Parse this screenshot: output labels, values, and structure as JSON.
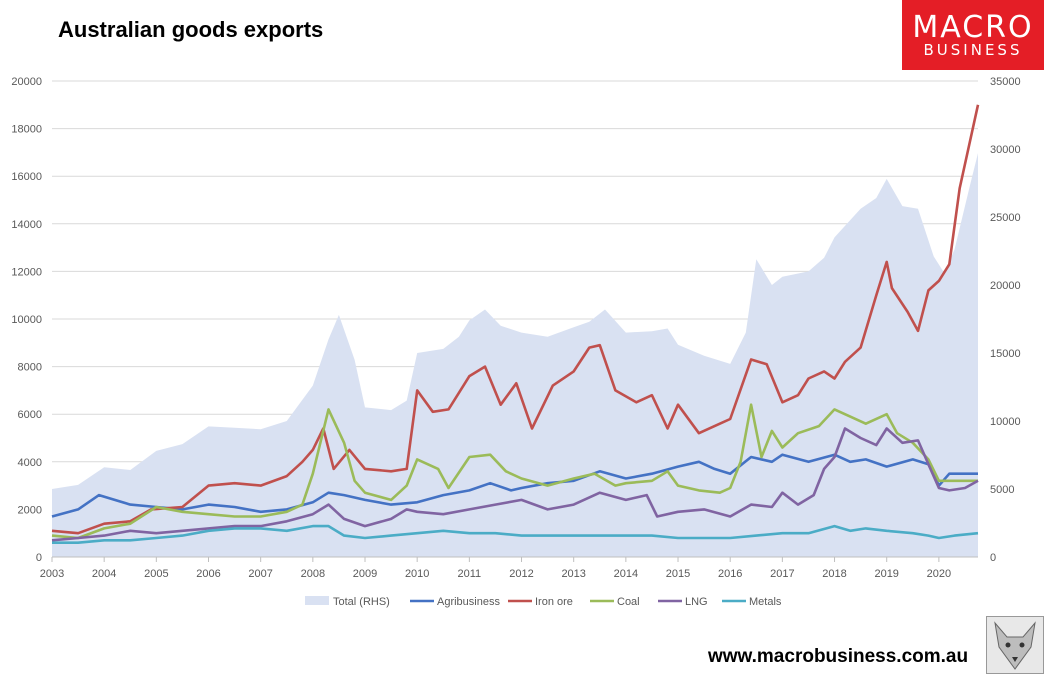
{
  "chart_data": {
    "type": "line",
    "title": "Australian goods exports",
    "x_range": [
      2003,
      2020.75
    ],
    "x_ticks": [
      "2003",
      "2004",
      "2005",
      "2006",
      "2007",
      "2008",
      "2009",
      "2010",
      "2011",
      "2012",
      "2013",
      "2014",
      "2015",
      "2016",
      "2017",
      "2018",
      "2019",
      "2020"
    ],
    "y_left_range": [
      0,
      20000
    ],
    "y_left_ticks": [
      "0",
      "2000",
      "4000",
      "6000",
      "8000",
      "10000",
      "12000",
      "14000",
      "16000",
      "18000",
      "20000"
    ],
    "y_right_range": [
      0,
      35000
    ],
    "y_right_ticks": [
      "0",
      "5000",
      "10000",
      "15000",
      "20000",
      "25000",
      "30000",
      "35000"
    ],
    "area": {
      "name": "Total (RHS)",
      "color": "#d9e1f2",
      "points": [
        [
          2003,
          5000
        ],
        [
          2003.5,
          5300
        ],
        [
          2004,
          6600
        ],
        [
          2004.5,
          6400
        ],
        [
          2005,
          7800
        ],
        [
          2005.5,
          8300
        ],
        [
          2006,
          9600
        ],
        [
          2006.5,
          9500
        ],
        [
          2007,
          9400
        ],
        [
          2007.5,
          10000
        ],
        [
          2008,
          12600
        ],
        [
          2008.3,
          16000
        ],
        [
          2008.5,
          17800
        ],
        [
          2008.8,
          14500
        ],
        [
          2009,
          11000
        ],
        [
          2009.5,
          10800
        ],
        [
          2009.8,
          11500
        ],
        [
          2010,
          15000
        ],
        [
          2010.5,
          15300
        ],
        [
          2010.8,
          16200
        ],
        [
          2011,
          17400
        ],
        [
          2011.3,
          18200
        ],
        [
          2011.6,
          17000
        ],
        [
          2012,
          16500
        ],
        [
          2012.5,
          16200
        ],
        [
          2013,
          16900
        ],
        [
          2013.3,
          17300
        ],
        [
          2013.6,
          18200
        ],
        [
          2014,
          16500
        ],
        [
          2014.5,
          16600
        ],
        [
          2014.8,
          16800
        ],
        [
          2015,
          15600
        ],
        [
          2015.5,
          14800
        ],
        [
          2016,
          14200
        ],
        [
          2016.3,
          16500
        ],
        [
          2016.5,
          21900
        ],
        [
          2016.8,
          20000
        ],
        [
          2017,
          20600
        ],
        [
          2017.5,
          21000
        ],
        [
          2017.8,
          22000
        ],
        [
          2018,
          23500
        ],
        [
          2018.5,
          25600
        ],
        [
          2018.8,
          26400
        ],
        [
          2019,
          27800
        ],
        [
          2019.3,
          25800
        ],
        [
          2019.6,
          25600
        ],
        [
          2019.9,
          22100
        ],
        [
          2020.1,
          20900
        ],
        [
          2020.3,
          22600
        ],
        [
          2020.6,
          27400
        ],
        [
          2020.75,
          29700
        ]
      ]
    },
    "series": [
      {
        "name": "Agribusiness",
        "color": "#4472c4",
        "points": [
          [
            2003,
            1700
          ],
          [
            2003.5,
            2000
          ],
          [
            2003.9,
            2600
          ],
          [
            2004.5,
            2200
          ],
          [
            2005,
            2100
          ],
          [
            2005.5,
            2000
          ],
          [
            2006,
            2200
          ],
          [
            2006.5,
            2100
          ],
          [
            2007,
            1900
          ],
          [
            2007.5,
            2000
          ],
          [
            2008,
            2300
          ],
          [
            2008.3,
            2700
          ],
          [
            2008.6,
            2600
          ],
          [
            2009,
            2400
          ],
          [
            2009.5,
            2200
          ],
          [
            2010,
            2300
          ],
          [
            2010.5,
            2600
          ],
          [
            2011,
            2800
          ],
          [
            2011.4,
            3100
          ],
          [
            2011.8,
            2800
          ],
          [
            2012,
            2900
          ],
          [
            2012.5,
            3100
          ],
          [
            2013,
            3200
          ],
          [
            2013.5,
            3600
          ],
          [
            2014,
            3300
          ],
          [
            2014.5,
            3500
          ],
          [
            2015,
            3800
          ],
          [
            2015.4,
            4000
          ],
          [
            2015.7,
            3700
          ],
          [
            2016,
            3500
          ],
          [
            2016.4,
            4200
          ],
          [
            2016.8,
            4000
          ],
          [
            2017,
            4300
          ],
          [
            2017.5,
            4000
          ],
          [
            2018,
            4300
          ],
          [
            2018.3,
            4000
          ],
          [
            2018.6,
            4100
          ],
          [
            2019,
            3800
          ],
          [
            2019.5,
            4100
          ],
          [
            2019.8,
            3900
          ],
          [
            2020,
            3000
          ],
          [
            2020.2,
            3500
          ],
          [
            2020.75,
            3500
          ]
        ]
      },
      {
        "name": "Iron ore",
        "color": "#c0504d",
        "points": [
          [
            2003,
            1100
          ],
          [
            2003.5,
            1000
          ],
          [
            2004,
            1400
          ],
          [
            2004.5,
            1500
          ],
          [
            2004.9,
            2000
          ],
          [
            2005.5,
            2100
          ],
          [
            2006,
            3000
          ],
          [
            2006.5,
            3100
          ],
          [
            2007,
            3000
          ],
          [
            2007.5,
            3400
          ],
          [
            2007.8,
            4000
          ],
          [
            2008,
            4500
          ],
          [
            2008.2,
            5400
          ],
          [
            2008.4,
            3700
          ],
          [
            2008.7,
            4500
          ],
          [
            2009,
            3700
          ],
          [
            2009.5,
            3600
          ],
          [
            2009.8,
            3700
          ],
          [
            2010,
            7000
          ],
          [
            2010.3,
            6100
          ],
          [
            2010.6,
            6200
          ],
          [
            2011,
            7600
          ],
          [
            2011.3,
            8000
          ],
          [
            2011.6,
            6400
          ],
          [
            2011.9,
            7300
          ],
          [
            2012.2,
            5400
          ],
          [
            2012.6,
            7200
          ],
          [
            2013,
            7800
          ],
          [
            2013.3,
            8800
          ],
          [
            2013.5,
            8900
          ],
          [
            2013.8,
            7000
          ],
          [
            2014.2,
            6500
          ],
          [
            2014.5,
            6800
          ],
          [
            2014.8,
            5400
          ],
          [
            2015,
            6400
          ],
          [
            2015.4,
            5200
          ],
          [
            2015.8,
            5600
          ],
          [
            2016,
            5800
          ],
          [
            2016.4,
            8300
          ],
          [
            2016.7,
            8100
          ],
          [
            2017,
            6500
          ],
          [
            2017.3,
            6800
          ],
          [
            2017.5,
            7500
          ],
          [
            2017.8,
            7800
          ],
          [
            2018,
            7500
          ],
          [
            2018.2,
            8200
          ],
          [
            2018.5,
            8800
          ],
          [
            2018.8,
            11000
          ],
          [
            2019,
            12400
          ],
          [
            2019.1,
            11300
          ],
          [
            2019.4,
            10300
          ],
          [
            2019.6,
            9500
          ],
          [
            2019.8,
            11200
          ],
          [
            2020,
            11600
          ],
          [
            2020.2,
            12300
          ],
          [
            2020.4,
            15500
          ],
          [
            2020.75,
            19000
          ]
        ]
      },
      {
        "name": "Coal",
        "color": "#9bbb59",
        "points": [
          [
            2003,
            900
          ],
          [
            2003.5,
            800
          ],
          [
            2004,
            1200
          ],
          [
            2004.5,
            1400
          ],
          [
            2005,
            2100
          ],
          [
            2005.5,
            1900
          ],
          [
            2006,
            1800
          ],
          [
            2006.5,
            1700
          ],
          [
            2007,
            1700
          ],
          [
            2007.5,
            1900
          ],
          [
            2007.8,
            2200
          ],
          [
            2008,
            3500
          ],
          [
            2008.3,
            6200
          ],
          [
            2008.6,
            4800
          ],
          [
            2008.8,
            3200
          ],
          [
            2009,
            2700
          ],
          [
            2009.5,
            2400
          ],
          [
            2009.8,
            3000
          ],
          [
            2010,
            4100
          ],
          [
            2010.4,
            3700
          ],
          [
            2010.6,
            2900
          ],
          [
            2011,
            4200
          ],
          [
            2011.4,
            4300
          ],
          [
            2011.7,
            3600
          ],
          [
            2012,
            3300
          ],
          [
            2012.5,
            3000
          ],
          [
            2013,
            3300
          ],
          [
            2013.4,
            3500
          ],
          [
            2013.8,
            3000
          ],
          [
            2014,
            3100
          ],
          [
            2014.5,
            3200
          ],
          [
            2014.8,
            3600
          ],
          [
            2015,
            3000
          ],
          [
            2015.4,
            2800
          ],
          [
            2015.8,
            2700
          ],
          [
            2016,
            2900
          ],
          [
            2016.2,
            4000
          ],
          [
            2016.4,
            6400
          ],
          [
            2016.6,
            4200
          ],
          [
            2016.8,
            5300
          ],
          [
            2017,
            4600
          ],
          [
            2017.3,
            5200
          ],
          [
            2017.7,
            5500
          ],
          [
            2018,
            6200
          ],
          [
            2018.3,
            5900
          ],
          [
            2018.6,
            5600
          ],
          [
            2019,
            6000
          ],
          [
            2019.2,
            5200
          ],
          [
            2019.5,
            4800
          ],
          [
            2019.8,
            4100
          ],
          [
            2020,
            3200
          ],
          [
            2020.3,
            3200
          ],
          [
            2020.75,
            3200
          ]
        ]
      },
      {
        "name": "LNG",
        "color": "#8064a2",
        "points": [
          [
            2003,
            700
          ],
          [
            2003.5,
            800
          ],
          [
            2004,
            900
          ],
          [
            2004.5,
            1100
          ],
          [
            2005,
            1000
          ],
          [
            2005.5,
            1100
          ],
          [
            2006,
            1200
          ],
          [
            2006.5,
            1300
          ],
          [
            2007,
            1300
          ],
          [
            2007.5,
            1500
          ],
          [
            2008,
            1800
          ],
          [
            2008.3,
            2200
          ],
          [
            2008.6,
            1600
          ],
          [
            2009,
            1300
          ],
          [
            2009.5,
            1600
          ],
          [
            2009.8,
            2000
          ],
          [
            2010,
            1900
          ],
          [
            2010.5,
            1800
          ],
          [
            2011,
            2000
          ],
          [
            2011.5,
            2200
          ],
          [
            2012,
            2400
          ],
          [
            2012.5,
            2000
          ],
          [
            2013,
            2200
          ],
          [
            2013.5,
            2700
          ],
          [
            2014,
            2400
          ],
          [
            2014.4,
            2600
          ],
          [
            2014.6,
            1700
          ],
          [
            2015,
            1900
          ],
          [
            2015.5,
            2000
          ],
          [
            2016,
            1700
          ],
          [
            2016.4,
            2200
          ],
          [
            2016.8,
            2100
          ],
          [
            2017,
            2700
          ],
          [
            2017.3,
            2200
          ],
          [
            2017.6,
            2600
          ],
          [
            2017.8,
            3700
          ],
          [
            2018,
            4200
          ],
          [
            2018.2,
            5400
          ],
          [
            2018.5,
            5000
          ],
          [
            2018.8,
            4700
          ],
          [
            2019,
            5400
          ],
          [
            2019.3,
            4800
          ],
          [
            2019.6,
            4900
          ],
          [
            2019.8,
            3900
          ],
          [
            2020,
            2900
          ],
          [
            2020.2,
            2800
          ],
          [
            2020.5,
            2900
          ],
          [
            2020.75,
            3200
          ]
        ]
      },
      {
        "name": "Metals",
        "color": "#4bacc6",
        "points": [
          [
            2003,
            600
          ],
          [
            2003.5,
            600
          ],
          [
            2004,
            700
          ],
          [
            2004.5,
            700
          ],
          [
            2005,
            800
          ],
          [
            2005.5,
            900
          ],
          [
            2006,
            1100
          ],
          [
            2006.5,
            1200
          ],
          [
            2007,
            1200
          ],
          [
            2007.5,
            1100
          ],
          [
            2008,
            1300
          ],
          [
            2008.3,
            1300
          ],
          [
            2008.6,
            900
          ],
          [
            2009,
            800
          ],
          [
            2009.5,
            900
          ],
          [
            2010,
            1000
          ],
          [
            2010.5,
            1100
          ],
          [
            2011,
            1000
          ],
          [
            2011.5,
            1000
          ],
          [
            2012,
            900
          ],
          [
            2012.5,
            900
          ],
          [
            2013,
            900
          ],
          [
            2013.5,
            900
          ],
          [
            2014,
            900
          ],
          [
            2014.5,
            900
          ],
          [
            2015,
            800
          ],
          [
            2015.5,
            800
          ],
          [
            2016,
            800
          ],
          [
            2016.5,
            900
          ],
          [
            2017,
            1000
          ],
          [
            2017.5,
            1000
          ],
          [
            2018,
            1300
          ],
          [
            2018.3,
            1100
          ],
          [
            2018.6,
            1200
          ],
          [
            2019,
            1100
          ],
          [
            2019.5,
            1000
          ],
          [
            2019.8,
            900
          ],
          [
            2020,
            800
          ],
          [
            2020.3,
            900
          ],
          [
            2020.75,
            1000
          ]
        ]
      }
    ],
    "legend": [
      "Total (RHS)",
      "Agribusiness",
      "Iron ore",
      "Coal",
      "LNG",
      "Metals"
    ],
    "legend_position": "bottom"
  },
  "branding": {
    "logo_line1": "MACRO",
    "logo_line2": "BUSINESS",
    "url": "www.macrobusiness.com.au"
  }
}
